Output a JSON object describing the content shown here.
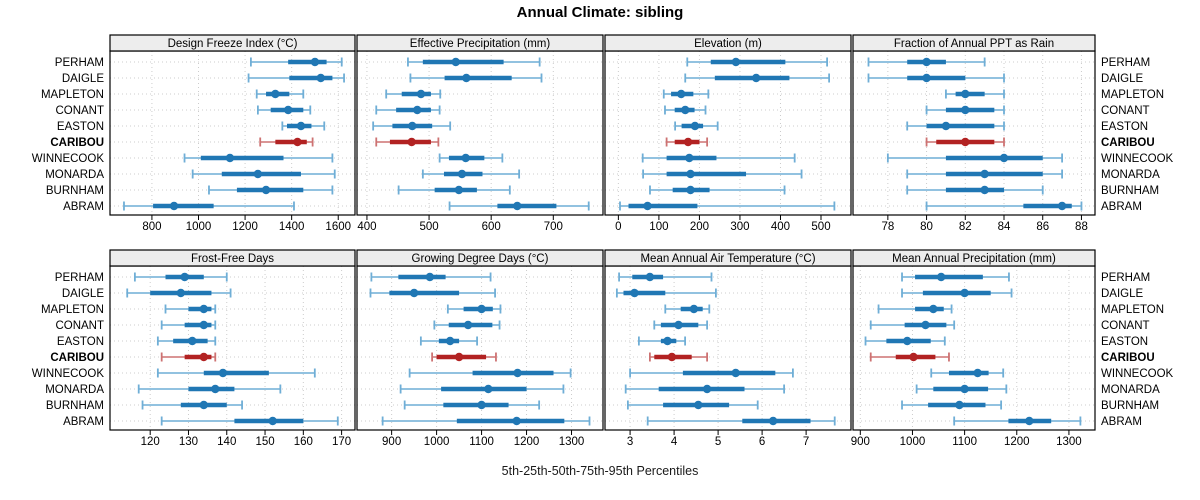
{
  "title": "Annual Climate: sibling",
  "caption": "5th-25th-50th-75th-95th Percentiles",
  "stations": [
    {
      "name": "PERHAM",
      "highlighted": false
    },
    {
      "name": "DAIGLE",
      "highlighted": false
    },
    {
      "name": "MAPLETON",
      "highlighted": false
    },
    {
      "name": "CONANT",
      "highlighted": false
    },
    {
      "name": "EASTON",
      "highlighted": false
    },
    {
      "name": "CARIBOU",
      "highlighted": true
    },
    {
      "name": "WINNECOOK",
      "highlighted": false
    },
    {
      "name": "MONARDA",
      "highlighted": false
    },
    {
      "name": "BURNHAM",
      "highlighted": false
    },
    {
      "name": "ABRAM",
      "highlighted": false
    }
  ],
  "colors": {
    "blue_main": "#2077B4",
    "blue_line": "#6FAED6",
    "red_main": "#B22222",
    "red_line": "#CD7272",
    "grid": "#CCCCCC",
    "strip_bg": "#EDEDED",
    "border": "#000000",
    "text": "#000000",
    "background": "#FFFFFF"
  },
  "chart_data": {
    "type": "table",
    "subtype": "trellis-percentile-dotplot",
    "percentile_labels": [
      "5th",
      "25th",
      "50th",
      "75th",
      "95th"
    ],
    "legend_position": "none",
    "grid": "dotted",
    "panels": [
      {
        "title": "Design Freeze Index (°C)",
        "row": 0,
        "col": 0,
        "ticks": [
          800,
          1000,
          1200,
          1400,
          1600
        ],
        "range": [
          620,
          1672
        ],
        "values": [
          [
            1225,
            1385,
            1500,
            1550,
            1615
          ],
          [
            1215,
            1390,
            1525,
            1575,
            1625
          ],
          [
            1250,
            1290,
            1330,
            1390,
            1450
          ],
          [
            1255,
            1310,
            1385,
            1450,
            1480
          ],
          [
            1360,
            1380,
            1440,
            1485,
            1540
          ],
          [
            1265,
            1330,
            1425,
            1465,
            1490
          ],
          [
            940,
            1010,
            1135,
            1365,
            1575
          ],
          [
            975,
            1100,
            1255,
            1440,
            1585
          ],
          [
            1045,
            1165,
            1290,
            1450,
            1575
          ],
          [
            680,
            805,
            895,
            1065,
            1410
          ]
        ]
      },
      {
        "title": "Effective Precipitation (mm)",
        "row": 0,
        "col": 1,
        "ticks": [
          400,
          500,
          600,
          700
        ],
        "range": [
          384,
          780
        ],
        "values": [
          [
            466,
            490,
            543,
            620,
            678
          ],
          [
            470,
            525,
            560,
            633,
            681
          ],
          [
            431,
            456,
            487,
            503,
            518
          ],
          [
            415,
            447,
            481,
            503,
            517
          ],
          [
            410,
            441,
            473,
            505,
            534
          ],
          [
            415,
            437,
            472,
            503,
            515
          ],
          [
            517,
            532,
            559,
            589,
            618
          ],
          [
            490,
            524,
            553,
            586,
            645
          ],
          [
            451,
            509,
            548,
            577,
            630
          ],
          [
            533,
            610,
            642,
            705,
            757
          ]
        ]
      },
      {
        "title": "Elevation (m)",
        "row": 0,
        "col": 2,
        "ticks": [
          0,
          100,
          200,
          300,
          400,
          500
        ],
        "range": [
          -33,
          574
        ],
        "values": [
          [
            170,
            228,
            290,
            412,
            515
          ],
          [
            165,
            238,
            340,
            422,
            520
          ],
          [
            112,
            130,
            155,
            185,
            222
          ],
          [
            115,
            139,
            165,
            188,
            215
          ],
          [
            140,
            156,
            189,
            209,
            245
          ],
          [
            119,
            139,
            172,
            200,
            219
          ],
          [
            60,
            119,
            175,
            242,
            435
          ],
          [
            61,
            119,
            178,
            315,
            452
          ],
          [
            78,
            134,
            178,
            225,
            410
          ],
          [
            4,
            25,
            72,
            195,
            533
          ]
        ]
      },
      {
        "title": "Fraction of Annual PPT as Rain",
        "row": 0,
        "col": 3,
        "ticks": [
          78,
          80,
          82,
          84,
          86,
          88
        ],
        "range": [
          76.2,
          88.7
        ],
        "values": [
          [
            77,
            79,
            80,
            81,
            83
          ],
          [
            77,
            79,
            80,
            82,
            84
          ],
          [
            81,
            81.5,
            82,
            83,
            84
          ],
          [
            80,
            81,
            82,
            83.5,
            84
          ],
          [
            79,
            80,
            81,
            83.5,
            84
          ],
          [
            80,
            80.5,
            82,
            83.5,
            84
          ],
          [
            78,
            81,
            84,
            86,
            87
          ],
          [
            79,
            81,
            83,
            86,
            87
          ],
          [
            79,
            81,
            83,
            84,
            86
          ],
          [
            80,
            85,
            87,
            87.5,
            88
          ]
        ]
      },
      {
        "title": "Frost-Free Days",
        "row": 1,
        "col": 0,
        "ticks": [
          120,
          130,
          140,
          150,
          160,
          170
        ],
        "range": [
          109.5,
          173.5
        ],
        "values": [
          [
            116,
            124,
            129,
            134,
            140
          ],
          [
            114,
            120,
            128,
            136,
            141
          ],
          [
            124,
            130,
            134,
            136,
            137
          ],
          [
            123,
            129,
            134,
            136,
            137
          ],
          [
            122,
            126,
            131,
            135,
            137
          ],
          [
            123,
            129,
            134,
            136,
            137
          ],
          [
            122,
            134,
            139,
            151,
            163
          ],
          [
            117,
            130,
            137,
            142,
            154
          ],
          [
            118,
            128,
            134,
            140,
            144
          ],
          [
            123,
            142,
            152,
            160,
            169
          ]
        ]
      },
      {
        "title": "Growing Degree Days (°C)",
        "row": 1,
        "col": 1,
        "ticks": [
          900,
          1000,
          1100,
          1200,
          1300
        ],
        "range": [
          823,
          1370
        ],
        "values": [
          [
            855,
            915,
            985,
            1020,
            1120
          ],
          [
            853,
            895,
            950,
            1050,
            1130
          ],
          [
            1025,
            1060,
            1100,
            1125,
            1142
          ],
          [
            995,
            1027,
            1070,
            1124,
            1140
          ],
          [
            965,
            1005,
            1030,
            1050,
            1090
          ],
          [
            990,
            1000,
            1050,
            1110,
            1132
          ],
          [
            940,
            1080,
            1180,
            1260,
            1298
          ],
          [
            920,
            1010,
            1115,
            1200,
            1282
          ],
          [
            929,
            1015,
            1100,
            1160,
            1228
          ],
          [
            880,
            1045,
            1178,
            1284,
            1340
          ]
        ]
      },
      {
        "title": "Mean Annual Air Temperature (°C)",
        "row": 1,
        "col": 2,
        "ticks": [
          3,
          4,
          5,
          6,
          7
        ],
        "range": [
          2.43,
          8.02
        ],
        "values": [
          [
            2.75,
            3.05,
            3.45,
            3.75,
            4.85
          ],
          [
            2.7,
            2.85,
            3.1,
            3.8,
            4.95
          ],
          [
            3.8,
            4.15,
            4.45,
            4.65,
            4.8
          ],
          [
            3.55,
            3.7,
            4.1,
            4.55,
            4.75
          ],
          [
            3.2,
            3.7,
            3.85,
            4.05,
            4.25
          ],
          [
            3.45,
            3.55,
            3.95,
            4.4,
            4.75
          ],
          [
            3.0,
            4.2,
            5.4,
            6.3,
            6.7
          ],
          [
            2.9,
            3.65,
            4.75,
            5.6,
            6.5
          ],
          [
            2.95,
            3.75,
            4.55,
            5.25,
            5.9
          ],
          [
            3.4,
            5.55,
            6.25,
            7.1,
            7.65
          ]
        ]
      },
      {
        "title": "Mean Annual Precipitation (mm)",
        "row": 1,
        "col": 3,
        "ticks": [
          900,
          1000,
          1100,
          1200,
          1300
        ],
        "range": [
          886,
          1350
        ],
        "values": [
          [
            980,
            1005,
            1055,
            1135,
            1185
          ],
          [
            980,
            1020,
            1100,
            1150,
            1190
          ],
          [
            935,
            1005,
            1040,
            1060,
            1075
          ],
          [
            920,
            985,
            1025,
            1065,
            1080
          ],
          [
            910,
            950,
            990,
            1035,
            1062
          ],
          [
            920,
            968,
            1002,
            1044,
            1070
          ],
          [
            1036,
            1070,
            1125,
            1146,
            1174
          ],
          [
            1008,
            1040,
            1100,
            1145,
            1180
          ],
          [
            980,
            1030,
            1090,
            1140,
            1170
          ],
          [
            1080,
            1184,
            1224,
            1266,
            1322
          ]
        ]
      }
    ]
  }
}
